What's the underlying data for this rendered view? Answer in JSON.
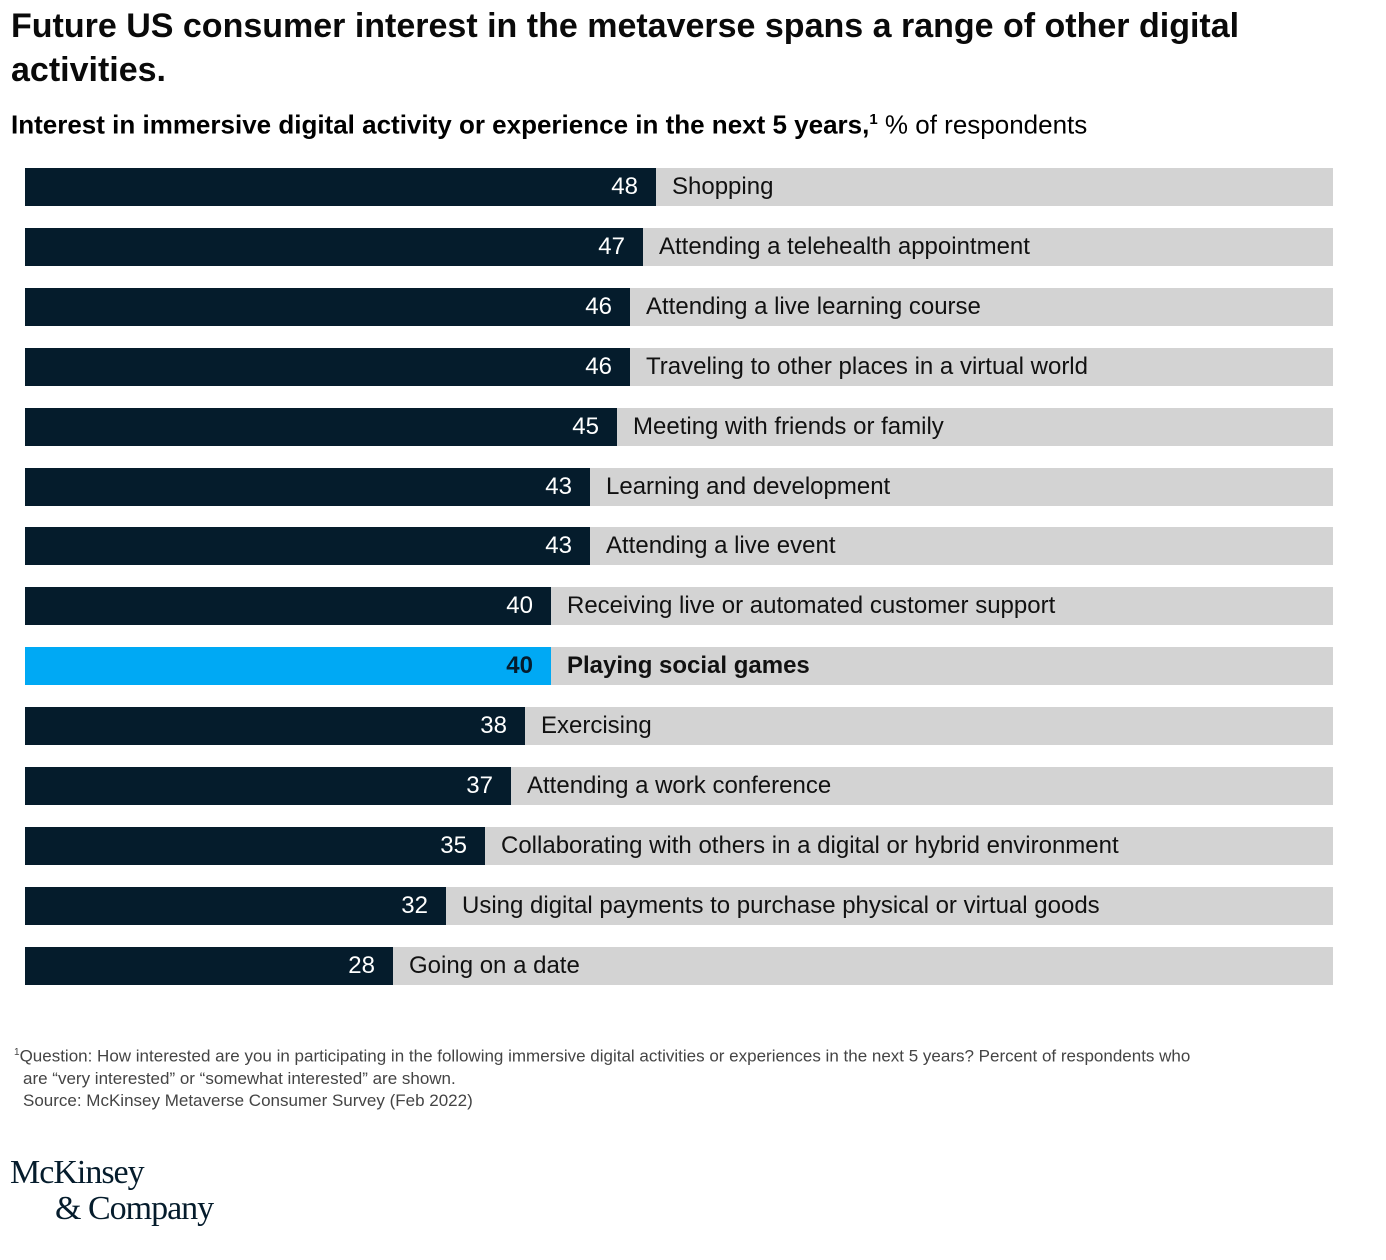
{
  "chart_data": {
    "type": "bar",
    "orientation": "horizontal",
    "title": "Future US consumer interest in the metaverse spans a range of other digital activities.",
    "subtitle_bold": "Interest in immersive digital activity or experience in the next 5 years,",
    "subtitle_sup": "1",
    "subtitle_unit": " % of respondents",
    "xlim": [
      0,
      100
    ],
    "categories": [
      "Shopping",
      "Attending a telehealth appointment",
      "Attending a live learning course",
      "Traveling to other places in a virtual world",
      "Meeting with friends or family",
      "Learning and development",
      "Attending a live event",
      "Receiving live or automated customer support",
      "Playing social games",
      "Exercising",
      "Attending a work conference",
      "Collaborating with others in a digital or hybrid environment",
      "Using digital payments to purchase physical or virtual goods",
      "Going on a date"
    ],
    "values": [
      48,
      47,
      46,
      46,
      45,
      43,
      43,
      40,
      40,
      38,
      37,
      35,
      32,
      28
    ],
    "highlight": "Playing social games",
    "colors": {
      "bar": "#051c2c",
      "highlight": "#00a9f4",
      "track": "#d3d3d3"
    }
  },
  "footnote": {
    "sup": "1",
    "line1": "Question: How interested are you in participating in the following immersive digital activities or experiences in the next 5 years? Percent of respondents who",
    "line2": "are “very interested” or “somewhat interested” are shown.",
    "source": "Source: McKinsey Metaverse Consumer Survey (Feb 2022)"
  },
  "logo": {
    "line1": "McKinsey",
    "line2": "& Company"
  }
}
